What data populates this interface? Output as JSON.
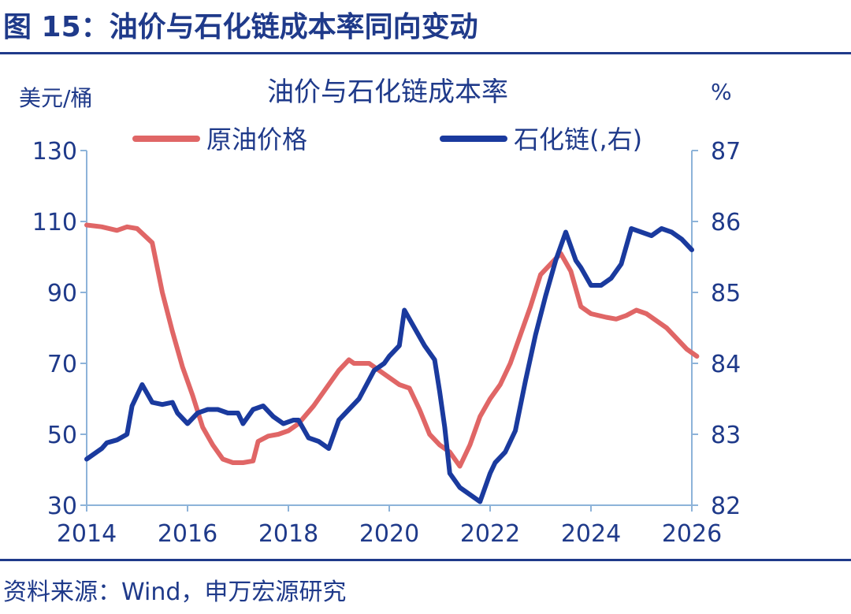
{
  "figure": {
    "title": "图 15：油价与石化链成本率同向变动",
    "source": "资料来源：Wind，申万宏源研究"
  },
  "chart_data": {
    "type": "line",
    "title": "油价与石化链成本率",
    "left_axis_label": "美元/桶",
    "right_axis_label": "%",
    "x_range": [
      2014,
      2026
    ],
    "x_ticks": [
      "2014",
      "2016",
      "2018",
      "2020",
      "2022",
      "2024",
      "2026"
    ],
    "y_left": {
      "range": [
        30,
        130
      ],
      "ticks": [
        "30",
        "50",
        "70",
        "90",
        "110",
        "130"
      ]
    },
    "y_right": {
      "range": [
        82,
        87
      ],
      "ticks": [
        "82",
        "83",
        "84",
        "85",
        "86",
        "87"
      ]
    },
    "grid": false,
    "legend_placement": "top",
    "colors": {
      "oil": "#e06666",
      "petro": "#1a3a9e",
      "axis": "#8db3d9",
      "text": "#1f3a8a"
    },
    "series": [
      {
        "name": "原油价格",
        "axis": "left",
        "color": "#e06666",
        "x": [
          2014.0,
          2014.3,
          2014.6,
          2014.8,
          2015.0,
          2015.3,
          2015.5,
          2015.7,
          2015.9,
          2016.1,
          2016.3,
          2016.5,
          2016.7,
          2016.9,
          2017.1,
          2017.3,
          2017.4,
          2017.6,
          2017.8,
          2018.0,
          2018.2,
          2018.5,
          2018.8,
          2019.0,
          2019.2,
          2019.3,
          2019.6,
          2019.8,
          2020.0,
          2020.2,
          2020.4,
          2020.6,
          2020.8,
          2021.0,
          2021.2,
          2021.4,
          2021.6,
          2021.8,
          2022.0,
          2022.2,
          2022.4,
          2022.6,
          2022.8,
          2023.0,
          2023.2,
          2023.4,
          2023.6,
          2023.8,
          2024.0,
          2024.3,
          2024.5,
          2024.7,
          2024.9,
          2025.1,
          2025.3,
          2025.5,
          2025.7,
          2025.9,
          2026.1
        ],
        "values": [
          109,
          108.5,
          107.5,
          108.5,
          108,
          104,
          90,
          79,
          69,
          61,
          52,
          47,
          43,
          42,
          42,
          42.5,
          48,
          49.5,
          50,
          51,
          53,
          58,
          64,
          68,
          71,
          70,
          70,
          68,
          66,
          64,
          63,
          57,
          50,
          47,
          45,
          41,
          47,
          55,
          60,
          64,
          70,
          78,
          86,
          95,
          98,
          101,
          96,
          86,
          84,
          83,
          82.5,
          83.5,
          85,
          84,
          82,
          80,
          77,
          74,
          72
        ]
      },
      {
        "name": "石化链(,右)",
        "axis": "right",
        "color": "#1a3a9e",
        "x": [
          2014.0,
          2014.3,
          2014.4,
          2014.6,
          2014.8,
          2014.9,
          2015.1,
          2015.3,
          2015.5,
          2015.7,
          2015.8,
          2016.0,
          2016.2,
          2016.4,
          2016.6,
          2016.8,
          2017.0,
          2017.1,
          2017.3,
          2017.5,
          2017.7,
          2017.9,
          2018.1,
          2018.2,
          2018.4,
          2018.6,
          2018.8,
          2019.0,
          2019.2,
          2019.4,
          2019.7,
          2019.9,
          2020.0,
          2020.2,
          2020.3,
          2020.5,
          2020.7,
          2020.9,
          2021.0,
          2021.1,
          2021.2,
          2021.4,
          2021.6,
          2021.8,
          2022.0,
          2022.1,
          2022.3,
          2022.5,
          2022.7,
          2022.9,
          2023.1,
          2023.3,
          2023.5,
          2023.7,
          2023.8,
          2024.0,
          2024.2,
          2024.4,
          2024.6,
          2024.8,
          2025.0,
          2025.2,
          2025.4,
          2025.6,
          2025.8,
          2026.0
        ],
        "values": [
          82.65,
          82.8,
          82.88,
          82.92,
          83.0,
          83.4,
          83.7,
          83.45,
          83.42,
          83.45,
          83.3,
          83.15,
          83.3,
          83.35,
          83.35,
          83.3,
          83.3,
          83.15,
          83.35,
          83.4,
          83.25,
          83.15,
          83.2,
          83.2,
          82.95,
          82.9,
          82.8,
          83.2,
          83.35,
          83.5,
          83.9,
          84.0,
          84.1,
          84.25,
          84.75,
          84.5,
          84.25,
          84.05,
          83.6,
          83.1,
          82.45,
          82.25,
          82.15,
          82.05,
          82.45,
          82.6,
          82.75,
          83.05,
          83.75,
          84.4,
          84.95,
          85.45,
          85.85,
          85.45,
          85.35,
          85.1,
          85.1,
          85.2,
          85.4,
          85.9,
          85.85,
          85.8,
          85.9,
          85.85,
          85.75,
          85.6
        ]
      }
    ]
  }
}
